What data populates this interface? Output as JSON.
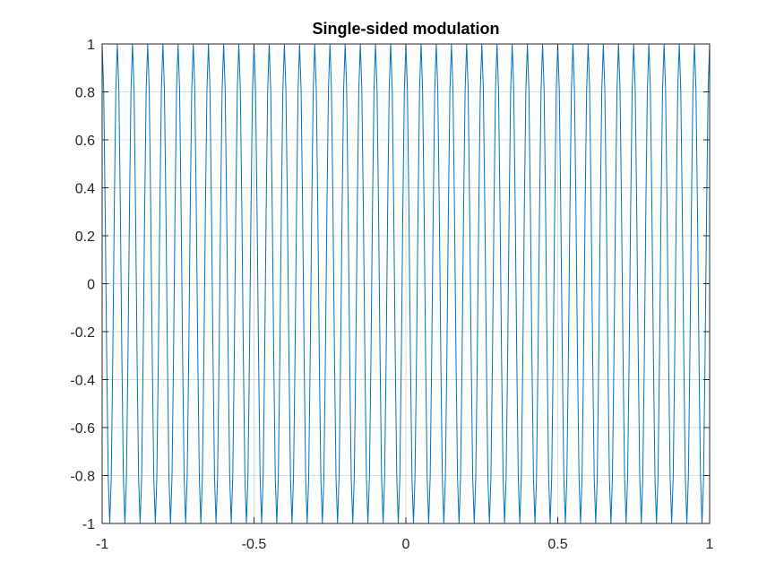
{
  "chart_data": {
    "type": "line",
    "title": "Single-sided modulation",
    "xlabel": "",
    "ylabel": "",
    "xlim": [
      -1,
      1
    ],
    "ylim": [
      -1,
      1
    ],
    "x_ticks": [
      -1,
      -0.5,
      0,
      0.5,
      1
    ],
    "x_tick_labels": [
      "-1",
      "-0.5",
      "0",
      "0.5",
      "1"
    ],
    "y_ticks": [
      -1,
      -0.8,
      -0.6,
      -0.4,
      -0.2,
      0,
      0.2,
      0.4,
      0.6,
      0.8,
      1
    ],
    "y_tick_labels": [
      "-1",
      "-0.8",
      "-0.6",
      "-0.4",
      "-0.2",
      "0",
      "0.2",
      "0.4",
      "0.6",
      "0.8",
      "1"
    ],
    "grid": true,
    "box": true,
    "series": [
      {
        "color": "#0072BD",
        "function": "cos(2*pi*f*x)",
        "frequency": 20,
        "x_step": 0.005,
        "x_range": [
          -1,
          1
        ]
      }
    ]
  }
}
